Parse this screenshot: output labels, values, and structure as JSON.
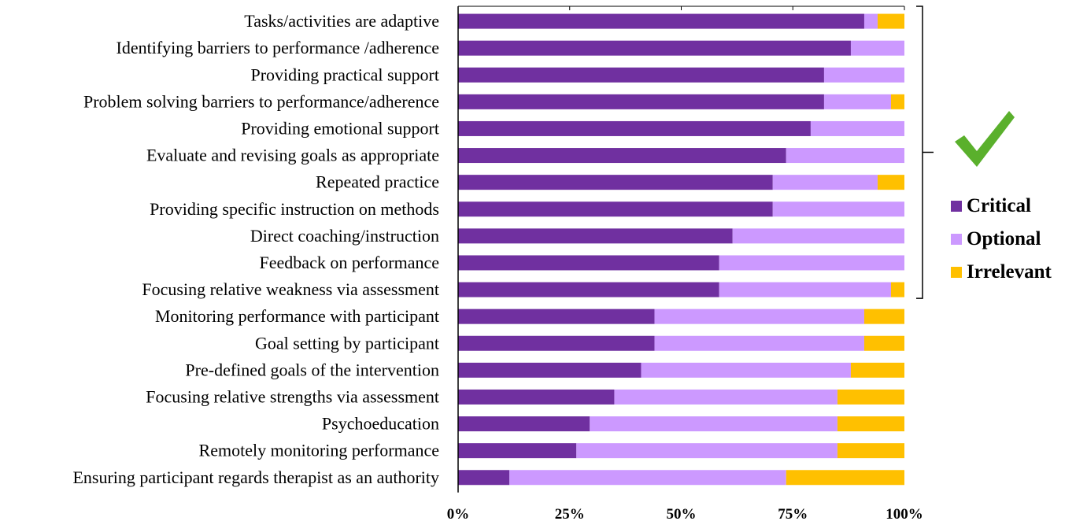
{
  "chart_data": {
    "type": "bar",
    "orientation": "horizontal",
    "stacked": true,
    "categories": [
      "Tasks/activities are adaptive",
      "Identifying barriers to performance /adherence",
      "Providing practical support",
      "Problem solving barriers to performance/adherence",
      "Providing emotional support",
      "Evaluate and revising goals as appropriate",
      "Repeated practice",
      "Providing specific instruction on methods",
      "Direct coaching/instruction",
      "Feedback on performance",
      "Focusing relative weakness via assessment",
      "Monitoring performance with participant",
      "Goal setting by participant",
      "Pre-defined goals of the intervention",
      "Focusing relative strengths via assessment",
      "Psychoeducation",
      "Remotely monitoring performance",
      "Ensuring participant regards therapist as an authority"
    ],
    "series": [
      {
        "name": "Critical",
        "color": "#7030a0",
        "values": [
          91,
          88,
          82,
          82,
          79,
          73.5,
          70.5,
          70.5,
          61.5,
          58.5,
          58.5,
          44,
          44,
          41,
          35,
          29.5,
          26.5,
          11.5
        ]
      },
      {
        "name": "Optional",
        "color": "#cc99ff",
        "values": [
          3,
          12,
          18,
          15,
          21,
          26.5,
          23.5,
          29.5,
          38.5,
          41.5,
          38.5,
          47,
          47,
          47,
          50,
          55.5,
          58.5,
          62
        ]
      },
      {
        "name": "Irrelevant",
        "color": "#ffc000",
        "values": [
          6,
          0,
          0,
          3,
          0,
          0,
          6,
          0,
          0,
          0,
          3,
          9,
          9,
          12,
          15,
          15,
          15,
          26.5
        ]
      }
    ],
    "x_ticks": [
      "0%",
      "25%",
      "50%",
      "75%",
      "100%"
    ],
    "xlim": [
      0,
      100
    ],
    "legend_position": "right",
    "bracket_range": [
      0,
      10
    ],
    "check_color": "#5ab02c"
  }
}
